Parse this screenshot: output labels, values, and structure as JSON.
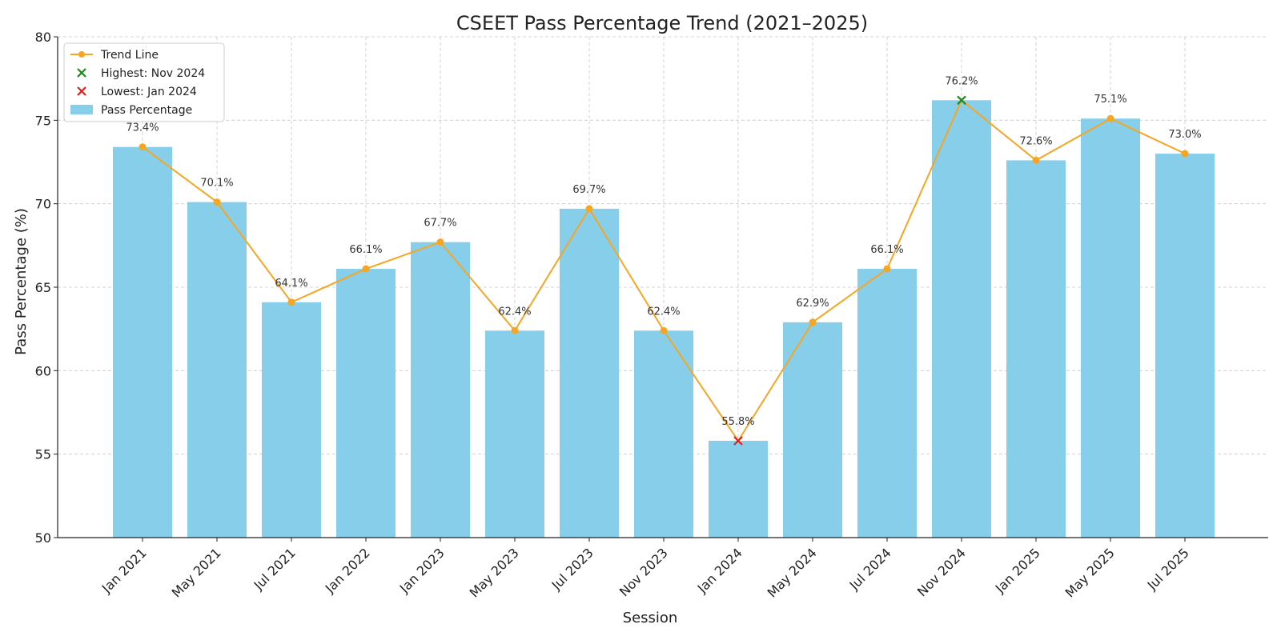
{
  "chart_data": {
    "type": "bar",
    "title": "CSEET Pass Percentage Trend (2021–2025)",
    "xlabel": "Session",
    "ylabel": "Pass Percentage (%)",
    "ylim": [
      50,
      80
    ],
    "yticks": [
      50,
      55,
      60,
      65,
      70,
      75,
      80
    ],
    "grid": true,
    "legend_position": "top-left",
    "categories": [
      "Jan 2021",
      "May 2021",
      "Jul 2021",
      "Jan 2022",
      "Jan 2023",
      "May 2023",
      "Jul 2023",
      "Nov 2023",
      "Jan 2024",
      "May 2024",
      "Jul 2024",
      "Nov 2024",
      "Jan 2025",
      "May 2025",
      "Jul 2025"
    ],
    "series": [
      {
        "name": "Pass Percentage",
        "type": "bar",
        "color": "#87ceeb",
        "values": [
          73.4,
          70.1,
          64.1,
          66.1,
          67.7,
          62.4,
          69.7,
          62.4,
          55.8,
          62.9,
          66.1,
          76.2,
          72.6,
          75.1,
          73.0
        ]
      },
      {
        "name": "Trend Line",
        "type": "line",
        "color": "#f5a623",
        "values": [
          73.4,
          70.1,
          64.1,
          66.1,
          67.7,
          62.4,
          69.7,
          62.4,
          55.8,
          62.9,
          66.1,
          76.2,
          72.6,
          75.1,
          73.0
        ]
      }
    ],
    "data_labels": [
      "73.4%",
      "70.1%",
      "64.1%",
      "66.1%",
      "67.7%",
      "62.4%",
      "69.7%",
      "62.4%",
      "55.8%",
      "62.9%",
      "66.1%",
      "76.2%",
      "72.6%",
      "75.1%",
      "73.0%"
    ],
    "highlights": [
      {
        "name": "Highest: Nov 2024",
        "category": "Nov 2024",
        "value": 76.2,
        "color": "#1a8a1a"
      },
      {
        "name": "Lowest: Jan 2024",
        "category": "Jan 2024",
        "value": 55.8,
        "color": "#e02020"
      }
    ],
    "legend": [
      "Trend Line",
      "Highest: Nov 2024",
      "Lowest: Jan 2024",
      "Pass Percentage"
    ]
  }
}
